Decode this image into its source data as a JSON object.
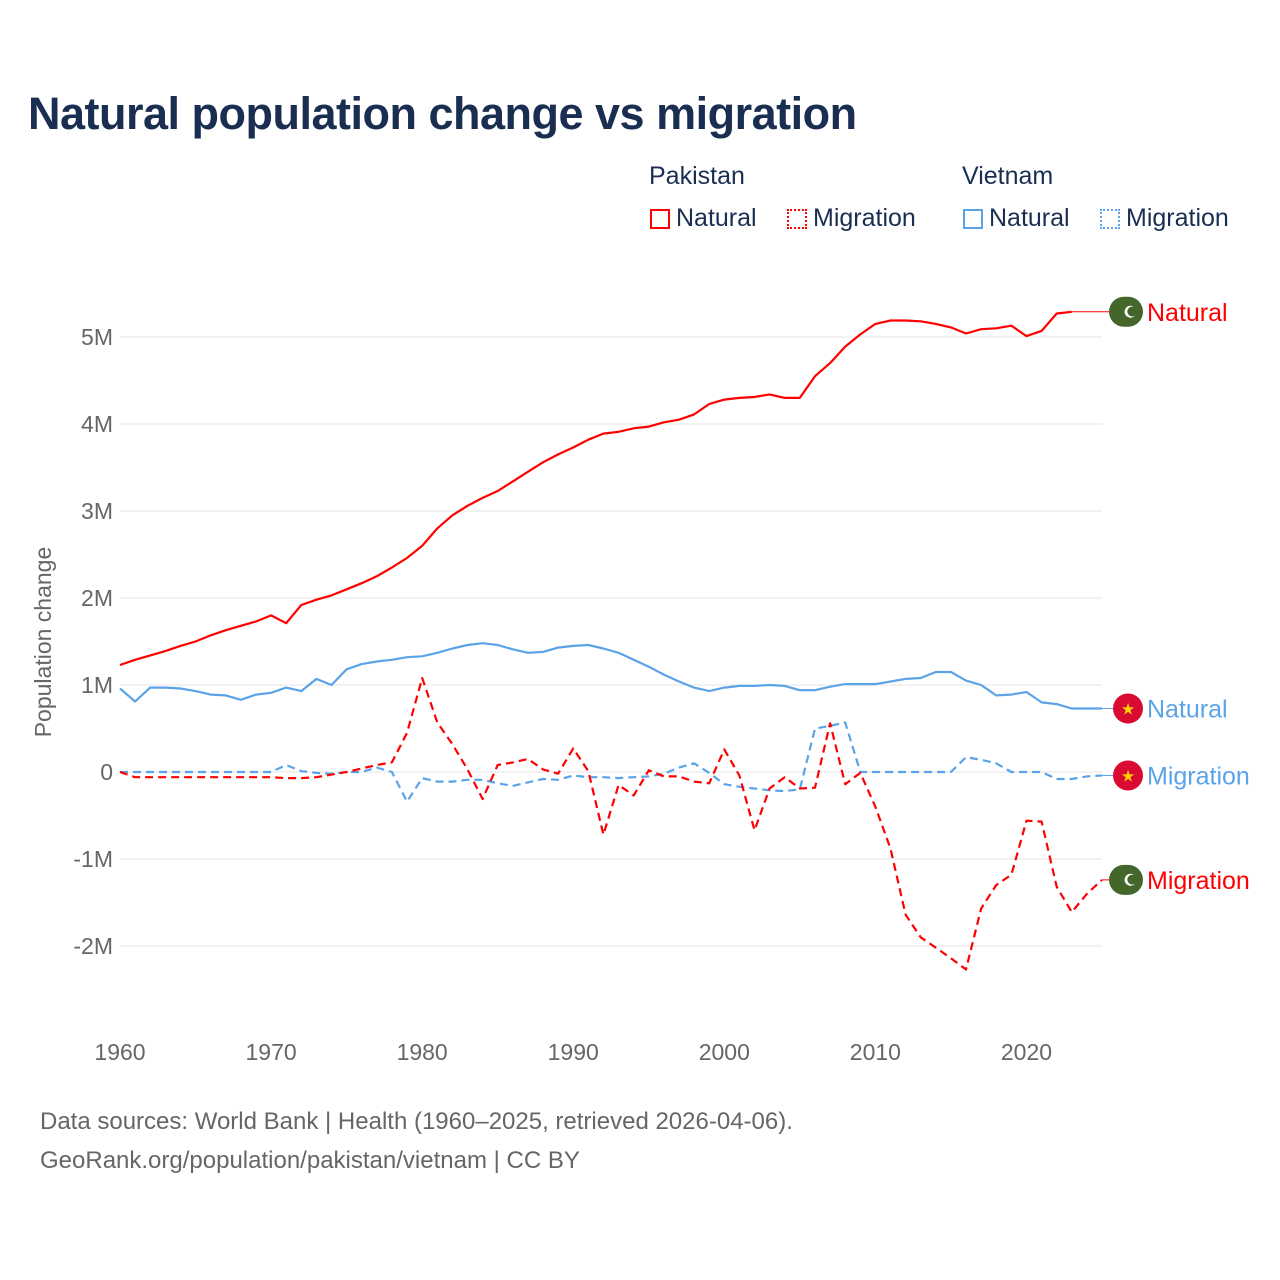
{
  "chart_data": {
    "type": "line",
    "title": "Natural population change vs migration",
    "xlabel": "",
    "ylabel": "Population change",
    "xlim": [
      1960,
      2025
    ],
    "ylim": [
      -2.5,
      5.5
    ],
    "x_ticks": [
      "1960",
      "1970",
      "1980",
      "1990",
      "2000",
      "2010",
      "2020"
    ],
    "y_ticks": [
      {
        "v": 5,
        "label": "5M"
      },
      {
        "v": 4,
        "label": "4M"
      },
      {
        "v": 3,
        "label": "3M"
      },
      {
        "v": 2,
        "label": "2M"
      },
      {
        "v": 1,
        "label": "1M"
      },
      {
        "v": 0,
        "label": "0"
      },
      {
        "v": -1,
        "label": "-1M"
      },
      {
        "v": -2,
        "label": "-2M"
      }
    ],
    "grid": true,
    "legend_placement": "top-right",
    "legend_groups": [
      {
        "name": "Pakistan",
        "entries": [
          "Natural",
          "Migration"
        ]
      },
      {
        "name": "Vietnam",
        "entries": [
          "Natural",
          "Migration"
        ]
      }
    ],
    "units": "millions of people",
    "series": [
      {
        "name": "Pakistan Natural",
        "country": "Pakistan",
        "label": "Natural",
        "color": "#ff0000",
        "dash": false,
        "flag": "pakistan-flag",
        "start": 1960,
        "values": [
          1.23,
          1.29,
          1.34,
          1.39,
          1.45,
          1.5,
          1.57,
          1.63,
          1.68,
          1.73,
          1.8,
          1.71,
          1.92,
          1.98,
          2.03,
          2.1,
          2.17,
          2.25,
          2.35,
          2.46,
          2.6,
          2.8,
          2.95,
          3.06,
          3.15,
          3.23,
          3.34,
          3.45,
          3.56,
          3.65,
          3.73,
          3.82,
          3.89,
          3.91,
          3.95,
          3.97,
          4.02,
          4.05,
          4.11,
          4.23,
          4.28,
          4.3,
          4.31,
          4.34,
          4.3,
          4.3,
          4.55,
          4.7,
          4.89,
          5.03,
          5.15,
          5.19,
          5.19,
          5.18,
          5.15,
          5.11,
          5.04,
          5.09,
          5.1,
          5.13,
          5.01,
          5.07,
          5.27,
          5.29
        ]
      },
      {
        "name": "Vietnam Natural",
        "country": "Vietnam",
        "label": "Natural",
        "color": "#5ba3e8",
        "dash": false,
        "flag": "vietnam-flag",
        "start": 1960,
        "values": [
          0.96,
          0.81,
          0.97,
          0.97,
          0.96,
          0.93,
          0.89,
          0.88,
          0.83,
          0.89,
          0.91,
          0.97,
          0.93,
          1.07,
          1.0,
          1.18,
          1.24,
          1.27,
          1.29,
          1.32,
          1.33,
          1.37,
          1.42,
          1.46,
          1.48,
          1.46,
          1.41,
          1.37,
          1.38,
          1.43,
          1.45,
          1.46,
          1.42,
          1.37,
          1.29,
          1.21,
          1.12,
          1.04,
          0.97,
          0.93,
          0.97,
          0.99,
          0.99,
          1.0,
          0.99,
          0.94,
          0.94,
          0.98,
          1.01,
          1.01,
          1.01,
          1.04,
          1.07,
          1.08,
          1.15,
          1.15,
          1.05,
          1.0,
          0.88,
          0.89,
          0.92,
          0.8,
          0.78,
          0.73,
          0.73,
          0.73
        ]
      },
      {
        "name": "Vietnam Migration",
        "country": "Vietnam",
        "label": "Migration",
        "color": "#5ba3e8",
        "dash": true,
        "flag": "vietnam-flag",
        "start": 1960,
        "values": [
          0,
          0,
          0,
          0,
          0,
          0,
          0,
          0,
          0,
          0,
          0,
          0.08,
          0.01,
          -0.01,
          -0.02,
          0,
          0,
          0.05,
          0,
          -0.34,
          -0.07,
          -0.11,
          -0.11,
          -0.09,
          -0.09,
          -0.13,
          -0.16,
          -0.12,
          -0.08,
          -0.09,
          -0.04,
          -0.06,
          -0.06,
          -0.07,
          -0.06,
          -0.05,
          -0.02,
          0.05,
          0.1,
          -0.01,
          -0.14,
          -0.17,
          -0.19,
          -0.21,
          -0.22,
          -0.2,
          0.5,
          0.53,
          0.57,
          0,
          0,
          0,
          0,
          0,
          0,
          0,
          0.17,
          0.14,
          0.1,
          0,
          0,
          0,
          -0.08,
          -0.08,
          -0.05,
          -0.04
        ]
      },
      {
        "name": "Pakistan Migration",
        "country": "Pakistan",
        "label": "Migration",
        "color": "#ff0000",
        "dash": true,
        "flag": "pakistan-flag",
        "start": 1960,
        "values": [
          0,
          -0.06,
          -0.06,
          -0.06,
          -0.06,
          -0.06,
          -0.06,
          -0.06,
          -0.06,
          -0.06,
          -0.06,
          -0.07,
          -0.07,
          -0.06,
          -0.03,
          0,
          0.04,
          0.08,
          0.11,
          0.45,
          1.08,
          0.57,
          0.32,
          0.03,
          -0.31,
          0.08,
          0.11,
          0.15,
          0.03,
          -0.02,
          0.27,
          0.01,
          -0.72,
          -0.15,
          -0.27,
          0.02,
          -0.05,
          -0.05,
          -0.11,
          -0.13,
          0.26,
          -0.04,
          -0.67,
          -0.19,
          -0.06,
          -0.19,
          -0.18,
          0.56,
          -0.14,
          -0.01,
          -0.4,
          -0.88,
          -1.64,
          -1.9,
          -2.02,
          -2.14,
          -2.27,
          -1.57,
          -1.3,
          -1.18,
          -0.56,
          -0.57,
          -1.32,
          -1.61,
          -1.4,
          -1.24
        ]
      }
    ]
  },
  "footer": {
    "line1": "Data sources: World Bank | Health (1960–2025, retrieved 2026-04-06).",
    "line2": "GeoRank.org/population/pakistan/vietnam | CC BY"
  }
}
